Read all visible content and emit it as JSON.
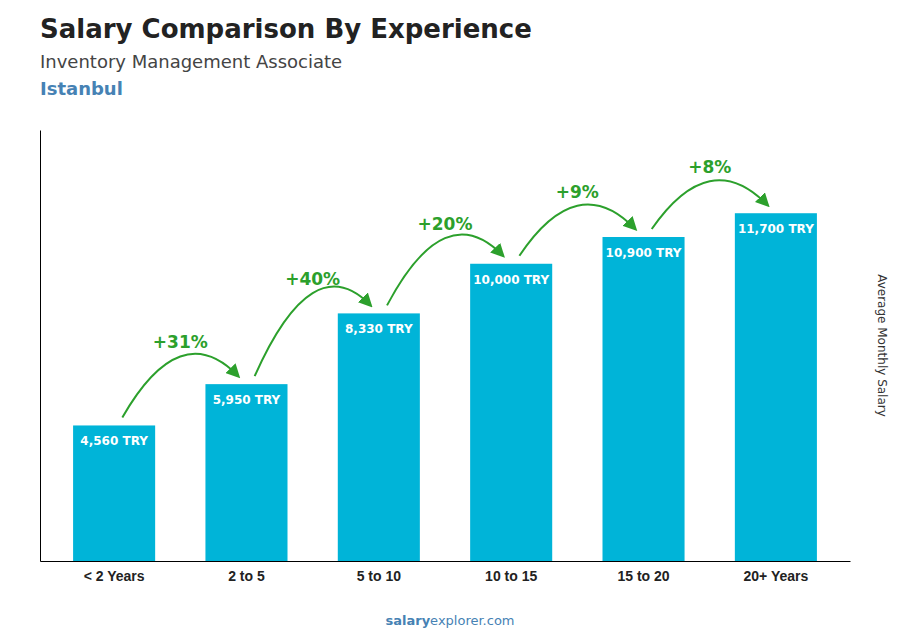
{
  "chart_data": {
    "type": "bar",
    "title": "Salary Comparison By Experience",
    "subtitle": "Inventory Management Associate",
    "city": "Istanbul",
    "categories": [
      "< 2 Years",
      "2 to 5",
      "5 to 10",
      "10 to 15",
      "15 to 20",
      "20+ Years"
    ],
    "values": [
      4560,
      5950,
      8330,
      10000,
      10900,
      11700
    ],
    "value_labels": [
      "4,560 TRY",
      "5,950 TRY",
      "8,330 TRY",
      "10,000 TRY",
      "10,900 TRY",
      "11,700 TRY"
    ],
    "data_labels": true,
    "color": "#00B4D8",
    "annotations": [
      "+31%",
      "+40%",
      "+20%",
      "+9%",
      "+8%"
    ],
    "ylabel": "Average Monthly Salary",
    "footer": [
      "salary",
      "explorer.com"
    ],
    "ylim": [
      0,
      14500
    ],
    "yticks": [],
    "grid": false,
    "tick_labels": "x"
  }
}
